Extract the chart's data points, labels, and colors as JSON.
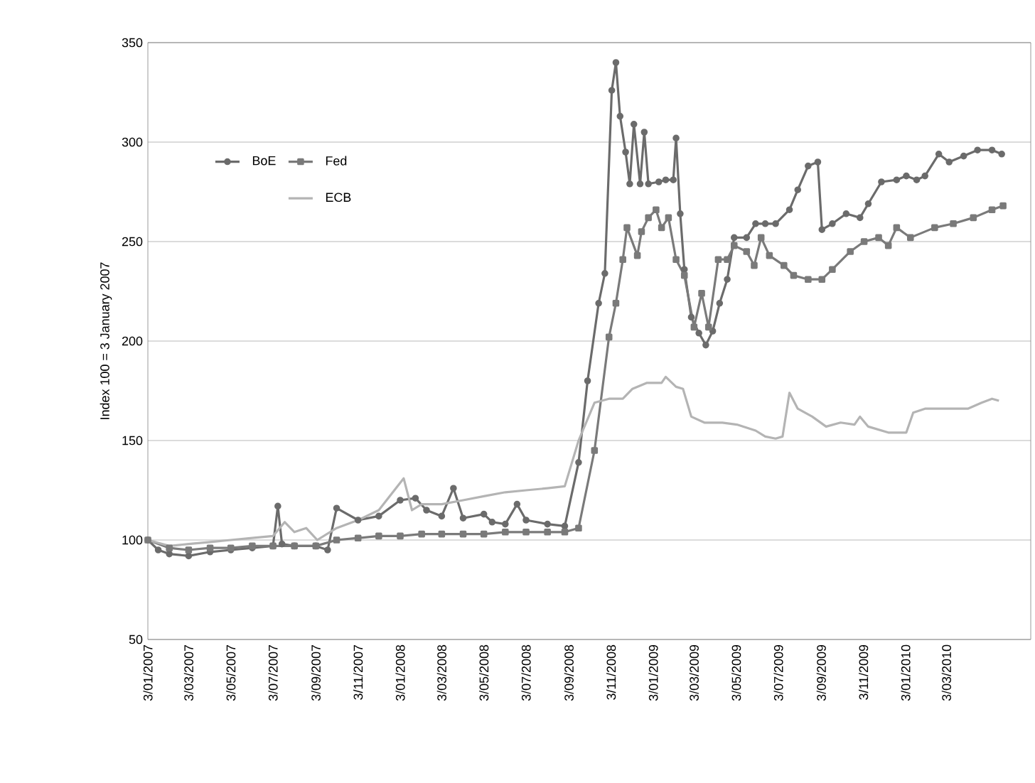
{
  "chart_data": {
    "type": "line",
    "ylabel": "Index 100 = 3 January 2007",
    "xlim": [
      "2007-01-03",
      "2010-07-03"
    ],
    "ylim": [
      50,
      350
    ],
    "yticks": [
      50,
      100,
      150,
      200,
      250,
      300,
      350
    ],
    "xticks": [
      {
        "value": "2007-01-03",
        "label": "3/01/2007"
      },
      {
        "value": "2007-03-03",
        "label": "3/03/2007"
      },
      {
        "value": "2007-05-03",
        "label": "3/05/2007"
      },
      {
        "value": "2007-07-03",
        "label": "3/07/2007"
      },
      {
        "value": "2007-09-03",
        "label": "3/09/2007"
      },
      {
        "value": "2007-11-03",
        "label": "3/11/2007"
      },
      {
        "value": "2008-01-03",
        "label": "3/01/2008"
      },
      {
        "value": "2008-03-03",
        "label": "3/03/2008"
      },
      {
        "value": "2008-05-03",
        "label": "3/05/2008"
      },
      {
        "value": "2008-07-03",
        "label": "3/07/2008"
      },
      {
        "value": "2008-09-03",
        "label": "3/09/2008"
      },
      {
        "value": "2008-11-03",
        "label": "3/11/2008"
      },
      {
        "value": "2009-01-03",
        "label": "3/01/2009"
      },
      {
        "value": "2009-03-03",
        "label": "3/03/2009"
      },
      {
        "value": "2009-05-03",
        "label": "3/05/2009"
      },
      {
        "value": "2009-07-03",
        "label": "3/07/2009"
      },
      {
        "value": "2009-09-03",
        "label": "3/09/2009"
      },
      {
        "value": "2009-11-03",
        "label": "3/11/2009"
      },
      {
        "value": "2010-01-03",
        "label": "3/01/2010"
      },
      {
        "value": "2010-03-03",
        "label": "3/03/2010"
      }
    ],
    "grid": "y",
    "legend": "top left",
    "line_style": "solid",
    "series": [
      {
        "name": "BoE",
        "color": "#6b6b6b",
        "marker": "circle",
        "x": [
          "2007-01-03",
          "2007-01-18",
          "2007-02-03",
          "2007-03-03",
          "2007-04-03",
          "2007-05-03",
          "2007-06-03",
          "2007-07-03",
          "2007-07-10",
          "2007-07-16",
          "2007-08-03",
          "2007-09-03",
          "2007-09-20",
          "2007-10-03",
          "2007-11-03",
          "2007-12-03",
          "2008-01-03",
          "2008-01-25",
          "2008-02-10",
          "2008-03-03",
          "2008-03-20",
          "2008-04-03",
          "2008-05-03",
          "2008-05-15",
          "2008-06-03",
          "2008-06-20",
          "2008-07-03",
          "2008-08-03",
          "2008-08-28",
          "2008-09-17",
          "2008-09-30",
          "2008-10-16",
          "2008-10-25",
          "2008-11-04",
          "2008-11-10",
          "2008-11-16",
          "2008-11-24",
          "2008-11-30",
          "2008-12-06",
          "2008-12-15",
          "2008-12-21",
          "2008-12-27",
          "2009-01-11",
          "2009-01-21",
          "2009-02-01",
          "2009-02-05",
          "2009-02-11",
          "2009-02-17",
          "2009-02-27",
          "2009-03-10",
          "2009-03-20",
          "2009-03-30",
          "2009-04-09",
          "2009-04-20",
          "2009-04-30",
          "2009-05-18",
          "2009-05-31",
          "2009-06-14",
          "2009-06-29",
          "2009-07-19",
          "2009-07-31",
          "2009-08-15",
          "2009-08-29",
          "2009-09-04",
          "2009-09-19",
          "2009-10-09",
          "2009-10-29",
          "2009-11-10",
          "2009-11-29",
          "2009-12-21",
          "2010-01-04",
          "2010-01-19",
          "2010-01-31",
          "2010-02-20",
          "2010-03-07",
          "2010-03-28",
          "2010-04-17",
          "2010-05-08",
          "2010-05-22"
        ],
        "values": [
          100,
          95,
          93,
          92,
          94,
          95,
          96,
          97,
          117,
          98,
          97,
          97,
          95,
          116,
          110,
          112,
          120,
          121,
          115,
          112,
          126,
          111,
          113,
          109,
          108,
          118,
          110,
          108,
          107,
          139,
          180,
          219,
          234,
          326,
          340,
          313,
          295,
          279,
          309,
          279,
          305,
          279,
          280,
          281,
          281,
          302,
          264,
          236,
          212,
          204,
          198,
          205,
          219,
          231,
          252,
          252,
          259,
          259,
          259,
          266,
          276,
          288,
          290,
          256,
          259,
          264,
          262,
          269,
          280,
          281,
          283,
          281,
          283,
          294,
          290,
          293,
          296,
          296,
          294
        ]
      },
      {
        "name": "Fed",
        "color": "#7a7a7a",
        "marker": "square",
        "x": [
          "2007-01-03",
          "2007-02-03",
          "2007-03-03",
          "2007-04-03",
          "2007-05-03",
          "2007-06-03",
          "2007-07-03",
          "2007-08-03",
          "2007-09-03",
          "2007-10-03",
          "2007-11-03",
          "2007-12-03",
          "2008-01-03",
          "2008-02-03",
          "2008-03-03",
          "2008-04-03",
          "2008-05-03",
          "2008-06-03",
          "2008-07-03",
          "2008-08-03",
          "2008-08-28",
          "2008-09-17",
          "2008-10-10",
          "2008-10-31",
          "2008-11-10",
          "2008-11-20",
          "2008-11-26",
          "2008-12-11",
          "2008-12-17",
          "2008-12-27",
          "2009-01-07",
          "2009-01-15",
          "2009-01-25",
          "2009-02-05",
          "2009-02-17",
          "2009-03-03",
          "2009-03-14",
          "2009-03-24",
          "2009-04-07",
          "2009-04-20",
          "2009-04-30",
          "2009-05-18",
          "2009-05-29",
          "2009-06-08",
          "2009-06-20",
          "2009-07-11",
          "2009-07-25",
          "2009-08-15",
          "2009-09-04",
          "2009-09-19",
          "2009-10-15",
          "2009-11-04",
          "2009-11-25",
          "2009-12-09",
          "2009-12-21",
          "2010-01-10",
          "2010-02-14",
          "2010-03-13",
          "2010-04-11",
          "2010-05-08",
          "2010-05-24"
        ],
        "values": [
          100,
          96,
          95,
          96,
          96,
          97,
          97,
          97,
          97,
          100,
          101,
          102,
          102,
          103,
          103,
          103,
          103,
          104,
          104,
          104,
          104,
          106,
          145,
          202,
          219,
          241,
          257,
          243,
          255,
          262,
          266,
          257,
          262,
          241,
          233,
          207,
          224,
          207,
          241,
          241,
          248,
          245,
          238,
          252,
          243,
          238,
          233,
          231,
          231,
          236,
          245,
          250,
          252,
          248,
          257,
          252,
          257,
          259,
          262,
          266,
          268
        ]
      },
      {
        "name": "ECB",
        "color": "#b4b4b4",
        "marker": "none",
        "x": [
          "2007-01-03",
          "2007-02-03",
          "2007-03-03",
          "2007-04-03",
          "2007-05-03",
          "2007-06-03",
          "2007-07-03",
          "2007-07-20",
          "2007-08-03",
          "2007-08-20",
          "2007-09-05",
          "2007-10-03",
          "2007-11-03",
          "2007-12-03",
          "2008-01-08",
          "2008-01-20",
          "2008-02-03",
          "2008-03-03",
          "2008-04-03",
          "2008-05-03",
          "2008-06-03",
          "2008-07-03",
          "2008-08-03",
          "2008-08-28",
          "2008-09-17",
          "2008-10-10",
          "2008-10-31",
          "2008-11-20",
          "2008-12-04",
          "2008-12-25",
          "2009-01-15",
          "2009-01-21",
          "2009-02-05",
          "2009-02-15",
          "2009-02-27",
          "2009-03-18",
          "2009-04-13",
          "2009-05-04",
          "2009-05-31",
          "2009-06-14",
          "2009-06-29",
          "2009-07-09",
          "2009-07-19",
          "2009-07-31",
          "2009-08-21",
          "2009-09-10",
          "2009-10-01",
          "2009-10-21",
          "2009-10-29",
          "2009-11-10",
          "2009-12-09",
          "2010-01-04",
          "2010-01-14",
          "2010-01-31",
          "2010-02-28",
          "2010-04-03",
          "2010-04-23",
          "2010-05-08",
          "2010-05-18"
        ],
        "values": [
          100,
          97,
          98,
          99,
          100,
          101,
          102,
          109,
          104,
          106,
          100,
          106,
          110,
          115,
          131,
          115,
          118,
          118,
          120,
          122,
          124,
          125,
          126,
          127,
          150,
          169,
          171,
          171,
          176,
          179,
          179,
          182,
          177,
          176,
          162,
          159,
          159,
          158,
          155,
          152,
          151,
          152,
          174,
          166,
          162,
          157,
          159,
          158,
          162,
          157,
          154,
          154,
          164,
          166,
          166,
          166,
          169,
          171,
          170
        ]
      }
    ]
  }
}
